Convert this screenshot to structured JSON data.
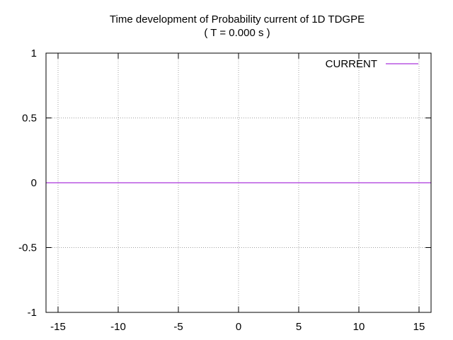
{
  "chart_data": {
    "type": "line",
    "title": "Time development of Probability current of 1D TDGPE",
    "subtitle": "( T = 0.000 s )",
    "xlabel": "",
    "ylabel": "",
    "xlim": [
      -16,
      16
    ],
    "ylim": [
      -1,
      1
    ],
    "xticks": [
      -15,
      -10,
      -5,
      0,
      5,
      10,
      15
    ],
    "yticks": [
      -1,
      -0.5,
      0,
      0.5,
      1
    ],
    "xtick_labels": [
      "-15",
      "-10",
      "-5",
      "0",
      "5",
      "10",
      "15"
    ],
    "ytick_labels": [
      "-1",
      "-0.5",
      "0",
      "0.5",
      "1"
    ],
    "grid": true,
    "legend_position": "top-right",
    "series": [
      {
        "name": "CURRENT",
        "color": "#9400d3",
        "x": [
          -16,
          16
        ],
        "y": [
          0,
          0
        ]
      }
    ]
  }
}
